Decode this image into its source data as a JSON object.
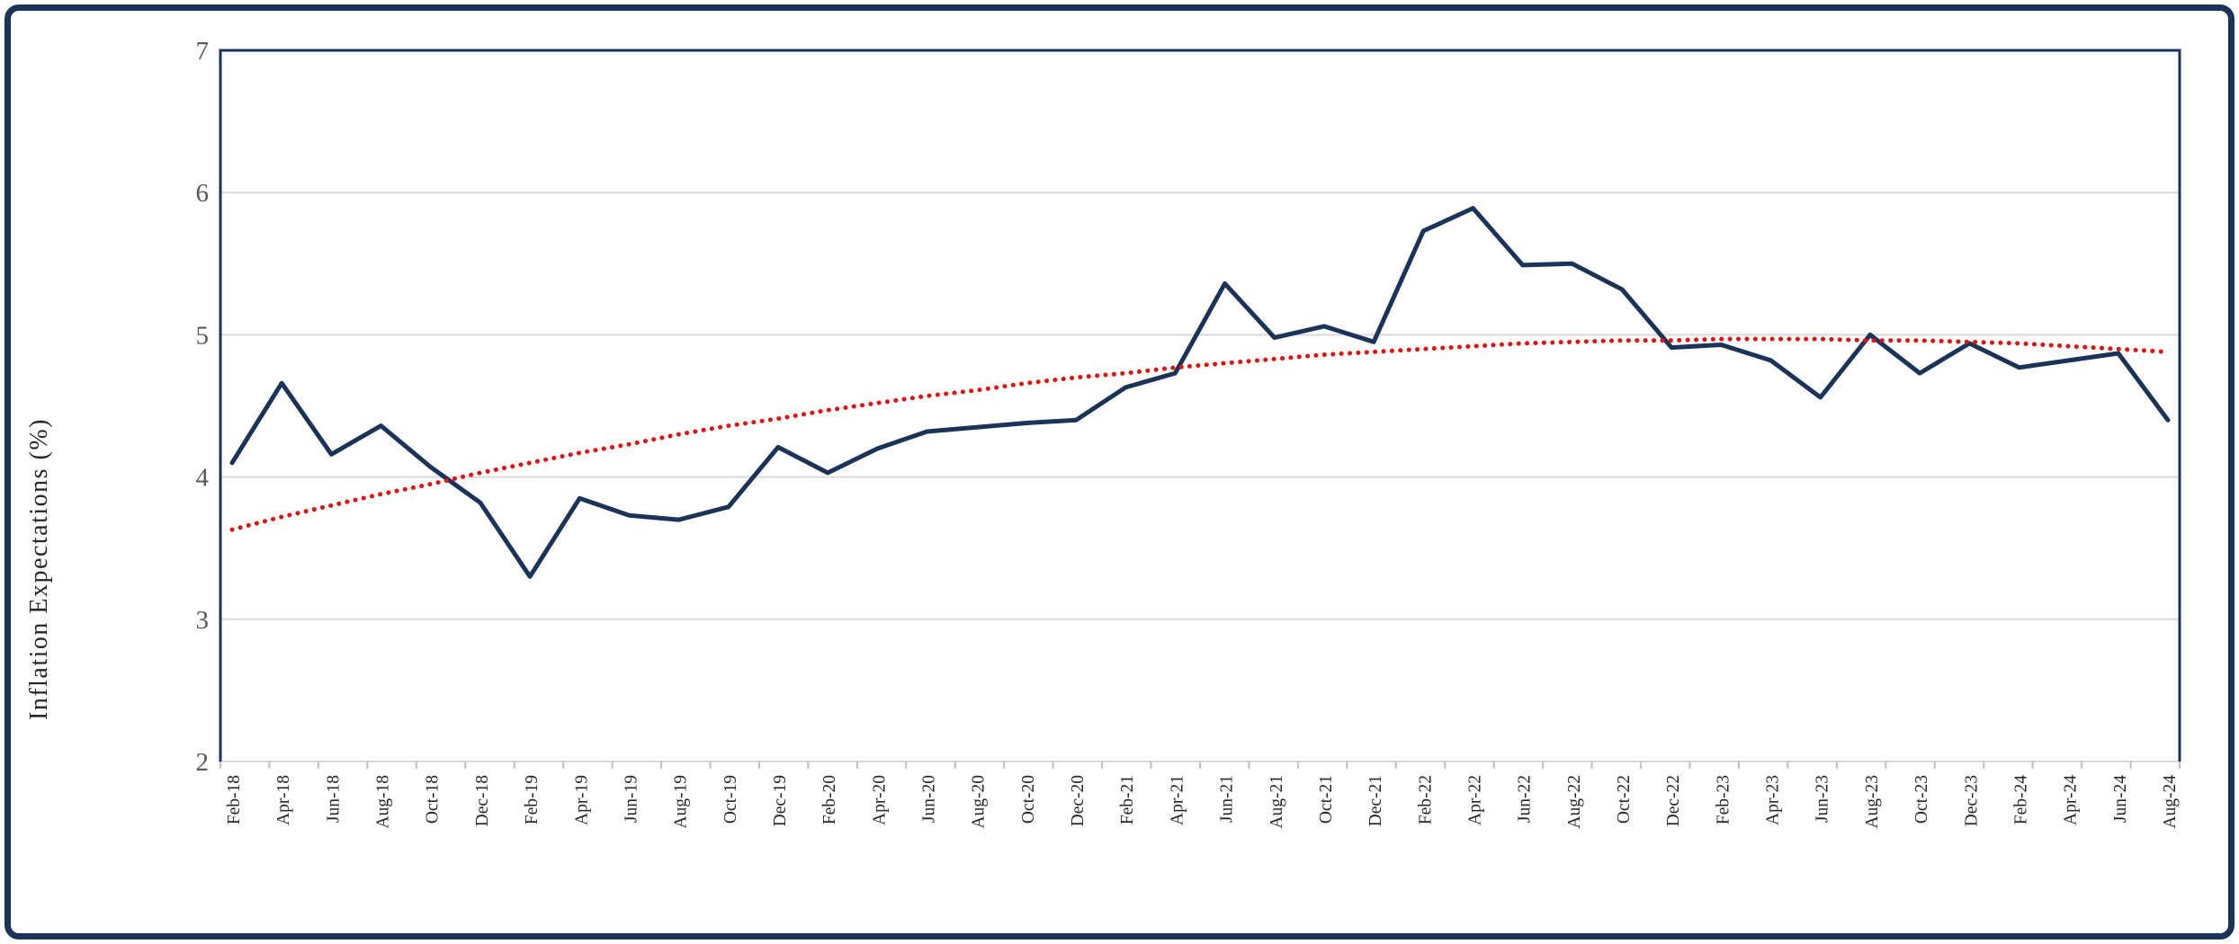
{
  "page": {
    "background": "#ffffff",
    "frame_border_color": "#1b3359"
  },
  "chart_data": {
    "type": "line",
    "title": "",
    "xlabel": "",
    "ylabel": "Inflation Expectations (%)",
    "ylim": [
      2,
      7
    ],
    "yticks": [
      "2",
      "3",
      "4",
      "5",
      "6",
      "7"
    ],
    "grid": "horizontal-only",
    "legend": "none",
    "categories": [
      "Feb-18",
      "Apr-18",
      "Jun-18",
      "Aug-18",
      "Oct-18",
      "Dec-18",
      "Feb-19",
      "Apr-19",
      "Jun-19",
      "Aug-19",
      "Oct-19",
      "Dec-19",
      "Feb-20",
      "Apr-20",
      "Jun-20",
      "Aug-20",
      "Oct-20",
      "Dec-20",
      "Feb-21",
      "Apr-21",
      "Jun-21",
      "Aug-21",
      "Oct-21",
      "Dec-21",
      "Feb-22",
      "Apr-22",
      "Jun-22",
      "Aug-22",
      "Oct-22",
      "Dec-22",
      "Feb-23",
      "Apr-23",
      "Jun-23",
      "Aug-23",
      "Oct-23",
      "Dec-23",
      "Feb-24",
      "Apr-24",
      "Jun-24",
      "Aug-24"
    ],
    "series": [
      {
        "name": "inflation-expectations",
        "color": "#1b3359",
        "style": "solid",
        "values": [
          4.1,
          4.66,
          4.16,
          4.36,
          4.07,
          3.82,
          3.3,
          3.85,
          3.73,
          3.7,
          3.79,
          4.21,
          4.03,
          4.2,
          4.32,
          4.35,
          4.38,
          4.4,
          4.63,
          4.73,
          5.36,
          4.98,
          5.06,
          4.95,
          5.73,
          5.89,
          5.49,
          5.5,
          5.32,
          4.91,
          4.93,
          4.82,
          4.56,
          5.0,
          4.73,
          4.94,
          4.77,
          4.82,
          4.87,
          4.4
        ]
      },
      {
        "name": "trendline",
        "color": "#e01212",
        "style": "dotted",
        "values": [
          3.63,
          3.72,
          3.8,
          3.88,
          3.95,
          4.03,
          4.1,
          4.17,
          4.23,
          4.3,
          4.36,
          4.41,
          4.47,
          4.52,
          4.57,
          4.61,
          4.66,
          4.7,
          4.73,
          4.77,
          4.8,
          4.83,
          4.86,
          4.88,
          4.9,
          4.92,
          4.94,
          4.95,
          4.96,
          4.96,
          4.97,
          4.97,
          4.97,
          4.96,
          4.96,
          4.95,
          4.94,
          4.92,
          4.9,
          4.88
        ]
      }
    ],
    "colors": {
      "gridline": "#d9d9d9",
      "axis_line": "#d9d9d9",
      "tick_mark": "#bfbfbf",
      "plot_border": "#1b3359",
      "y_tick_label": "#595959",
      "x_tick_label": "#262626",
      "axis_title": "#262626"
    }
  }
}
